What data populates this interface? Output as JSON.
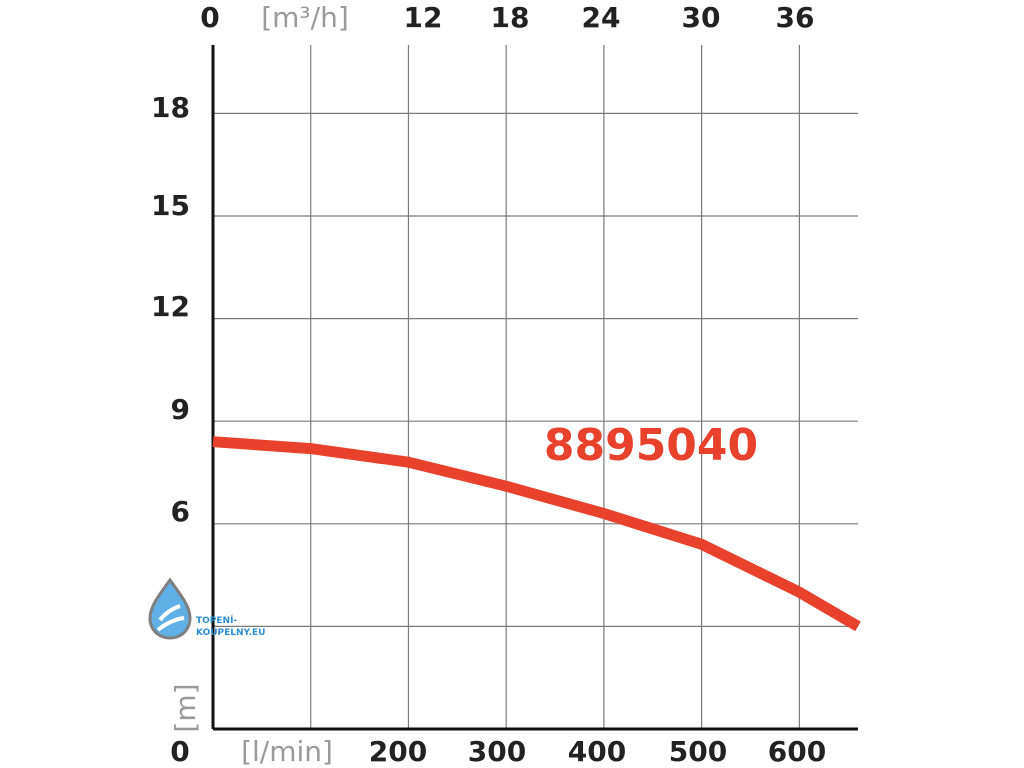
{
  "chart_data": {
    "type": "line",
    "x_top": {
      "unit": "[m³/h]",
      "tick_labels": [
        "0",
        "12",
        "18",
        "24",
        "30",
        "36"
      ]
    },
    "x_bottom": {
      "unit": "[l/min]",
      "tick_labels": [
        "0",
        "200",
        "300",
        "400",
        "500",
        "600"
      ],
      "xlim": [
        0,
        660
      ]
    },
    "y": {
      "unit": "[m]",
      "tick_labels": [
        "0",
        "6",
        "9",
        "12",
        "15",
        "18"
      ],
      "ylim": [
        0,
        20
      ]
    },
    "grid": true,
    "series": [
      {
        "name": "8895040",
        "color": "#e8412c",
        "x": [
          0,
          100,
          200,
          300,
          400,
          500,
          600,
          660
        ],
        "y": [
          8.4,
          8.2,
          7.8,
          7.1,
          6.3,
          5.4,
          4.0,
          3.0
        ]
      }
    ]
  },
  "watermark": {
    "line1": "TOPENÍ-",
    "line2": "KOUPELNY.EU"
  }
}
